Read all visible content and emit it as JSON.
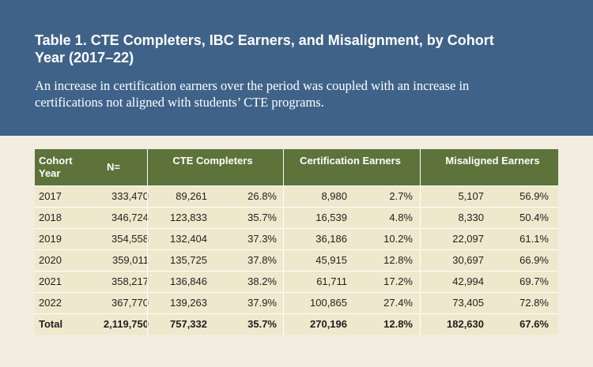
{
  "header": {
    "title": "Table 1. CTE Completers, IBC Earners, and Misalignment, by Cohort Year (2017–22)",
    "subtitle": "An increase in certification earners over the period was coupled with an increase in certifications not aligned with students’ CTE programs."
  },
  "table": {
    "headers": {
      "cohort": "Cohort Year",
      "n": "N=",
      "cte": "CTE Completers",
      "cert": "Certification Earners",
      "mis": "Misaligned Earners"
    },
    "rows": [
      {
        "year": "2017",
        "n": "333,470",
        "cte_n": "89,261",
        "cte_pct": "26.8%",
        "cert_n": "8,980",
        "cert_pct": "2.7%",
        "mis_n": "5,107",
        "mis_pct": "56.9%"
      },
      {
        "year": "2018",
        "n": "346,724",
        "cte_n": "123,833",
        "cte_pct": "35.7%",
        "cert_n": "16,539",
        "cert_pct": "4.8%",
        "mis_n": "8,330",
        "mis_pct": "50.4%"
      },
      {
        "year": "2019",
        "n": "354,558",
        "cte_n": "132,404",
        "cte_pct": "37.3%",
        "cert_n": "36,186",
        "cert_pct": "10.2%",
        "mis_n": "22,097",
        "mis_pct": "61.1%"
      },
      {
        "year": "2020",
        "n": "359,011",
        "cte_n": "135,725",
        "cte_pct": "37.8%",
        "cert_n": "45,915",
        "cert_pct": "12.8%",
        "mis_n": "30,697",
        "mis_pct": "66.9%"
      },
      {
        "year": "2021",
        "n": "358,217",
        "cte_n": "136,846",
        "cte_pct": "38.2%",
        "cert_n": "61,711",
        "cert_pct": "17.2%",
        "mis_n": "42,994",
        "mis_pct": "69.7%"
      },
      {
        "year": "2022",
        "n": "367,770",
        "cte_n": "139,263",
        "cte_pct": "37.9%",
        "cert_n": "100,865",
        "cert_pct": "27.4%",
        "mis_n": "73,405",
        "mis_pct": "72.8%"
      }
    ],
    "total": {
      "year": "Total",
      "n": "2,119,750",
      "cte_n": "757,332",
      "cte_pct": "35.7%",
      "cert_n": "270,196",
      "cert_pct": "12.8%",
      "mis_n": "182,630",
      "mis_pct": "67.6%"
    }
  },
  "colors": {
    "header_bg": "#3f6388",
    "table_header_bg": "#5d733a",
    "table_body_bg": "#efe8cc",
    "page_bg": "#f1ede1"
  }
}
